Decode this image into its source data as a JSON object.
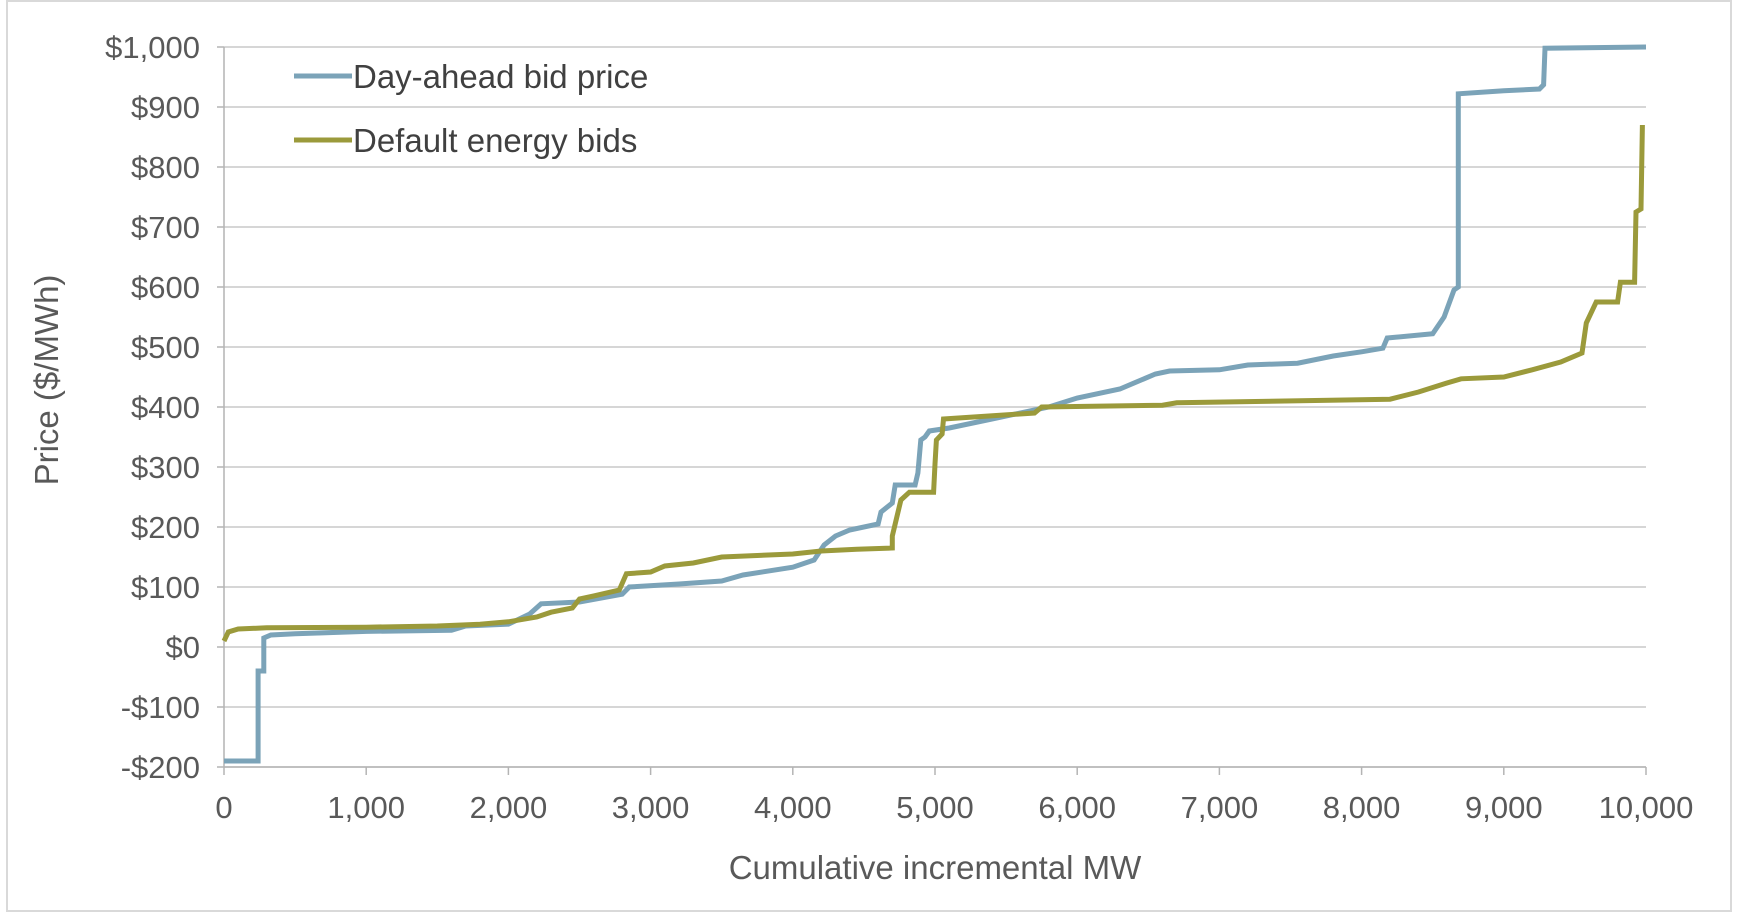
{
  "chart_data": {
    "type": "line",
    "title": "",
    "xlabel": "Cumulative incremental MW",
    "ylabel": "Price ($/MWh)",
    "xlim": [
      0,
      10000
    ],
    "ylim": [
      -200,
      1000
    ],
    "x_ticks": [
      0,
      1000,
      2000,
      3000,
      4000,
      5000,
      6000,
      7000,
      8000,
      9000,
      10000
    ],
    "x_tick_labels": [
      "0",
      "1,000",
      "2,000",
      "3,000",
      "4,000",
      "5,000",
      "6,000",
      "7,000",
      "8,000",
      "9,000",
      "10,000"
    ],
    "y_ticks": [
      -200,
      -100,
      0,
      100,
      200,
      300,
      400,
      500,
      600,
      700,
      800,
      900,
      1000
    ],
    "y_tick_labels": [
      "-$200",
      "-$100",
      "$0",
      "$100",
      "$200",
      "$300",
      "$400",
      "$500",
      "$600",
      "$700",
      "$800",
      "$900",
      "$1,000"
    ],
    "grid": "horizontal",
    "legend_position": "top-left",
    "series": [
      {
        "name": "Day-ahead bid price",
        "color": "#7ba3b8",
        "points": [
          [
            0,
            -190
          ],
          [
            240,
            -190
          ],
          [
            240,
            -40
          ],
          [
            280,
            -40
          ],
          [
            280,
            15
          ],
          [
            330,
            20
          ],
          [
            500,
            22
          ],
          [
            1000,
            26
          ],
          [
            1600,
            28
          ],
          [
            1700,
            35
          ],
          [
            2000,
            38
          ],
          [
            2150,
            55
          ],
          [
            2230,
            72
          ],
          [
            2500,
            75
          ],
          [
            2800,
            88
          ],
          [
            2850,
            100
          ],
          [
            3200,
            105
          ],
          [
            3500,
            110
          ],
          [
            3650,
            120
          ],
          [
            4000,
            133
          ],
          [
            4150,
            145
          ],
          [
            4220,
            170
          ],
          [
            4300,
            185
          ],
          [
            4400,
            195
          ],
          [
            4600,
            205
          ],
          [
            4620,
            225
          ],
          [
            4700,
            240
          ],
          [
            4720,
            270
          ],
          [
            4860,
            270
          ],
          [
            4880,
            290
          ],
          [
            4900,
            345
          ],
          [
            4930,
            350
          ],
          [
            4960,
            360
          ],
          [
            5100,
            365
          ],
          [
            5400,
            380
          ],
          [
            5800,
            400
          ],
          [
            6000,
            415
          ],
          [
            6300,
            430
          ],
          [
            6550,
            455
          ],
          [
            6650,
            460
          ],
          [
            7000,
            462
          ],
          [
            7200,
            470
          ],
          [
            7550,
            473
          ],
          [
            7800,
            485
          ],
          [
            8000,
            492
          ],
          [
            8150,
            498
          ],
          [
            8180,
            515
          ],
          [
            8500,
            522
          ],
          [
            8580,
            550
          ],
          [
            8650,
            595
          ],
          [
            8680,
            600
          ],
          [
            8680,
            922
          ],
          [
            9000,
            927
          ],
          [
            9250,
            930
          ],
          [
            9280,
            937
          ],
          [
            9290,
            998
          ],
          [
            10000,
            1000
          ]
        ]
      },
      {
        "name": "Default energy bids",
        "color": "#9b9a3b",
        "points": [
          [
            0,
            10
          ],
          [
            30,
            25
          ],
          [
            100,
            30
          ],
          [
            300,
            32
          ],
          [
            1000,
            33
          ],
          [
            1500,
            35
          ],
          [
            1800,
            38
          ],
          [
            2000,
            42
          ],
          [
            2200,
            50
          ],
          [
            2300,
            58
          ],
          [
            2450,
            65
          ],
          [
            2500,
            80
          ],
          [
            2600,
            85
          ],
          [
            2780,
            95
          ],
          [
            2830,
            122
          ],
          [
            3000,
            125
          ],
          [
            3100,
            135
          ],
          [
            3300,
            140
          ],
          [
            3500,
            150
          ],
          [
            4000,
            155
          ],
          [
            4200,
            160
          ],
          [
            4450,
            163
          ],
          [
            4700,
            165
          ],
          [
            4700,
            185
          ],
          [
            4730,
            215
          ],
          [
            4760,
            245
          ],
          [
            4820,
            258
          ],
          [
            4990,
            258
          ],
          [
            5000,
            305
          ],
          [
            5010,
            345
          ],
          [
            5050,
            355
          ],
          [
            5060,
            380
          ],
          [
            5700,
            390
          ],
          [
            5750,
            400
          ],
          [
            6600,
            403
          ],
          [
            6700,
            407
          ],
          [
            8200,
            413
          ],
          [
            8400,
            425
          ],
          [
            8600,
            440
          ],
          [
            8700,
            447
          ],
          [
            9000,
            450
          ],
          [
            9200,
            462
          ],
          [
            9400,
            475
          ],
          [
            9550,
            490
          ],
          [
            9580,
            540
          ],
          [
            9650,
            575
          ],
          [
            9800,
            575
          ],
          [
            9820,
            608
          ],
          [
            9920,
            608
          ],
          [
            9930,
            725
          ],
          [
            9965,
            730
          ],
          [
            9975,
            870
          ]
        ]
      }
    ]
  }
}
